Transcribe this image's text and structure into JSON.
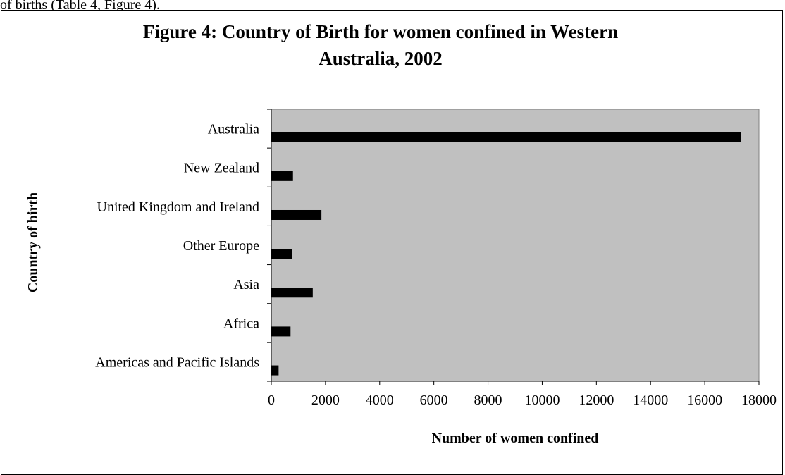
{
  "page": {
    "top_text": "of births (Table 4, Figure 4)."
  },
  "chart_data": {
    "type": "bar",
    "orientation": "horizontal",
    "title_lines": [
      "Figure 4: Country of Birth for women confined in Western",
      "Australia, 2002"
    ],
    "xlabel": "Number of women confined",
    "ylabel": "Country of birth",
    "categories": [
      "Australia",
      "New Zealand",
      "United Kingdom and Ireland",
      "Other Europe",
      "Asia",
      "Africa",
      "Americas and Pacific Islands"
    ],
    "values": [
      17330,
      800,
      1850,
      760,
      1530,
      710,
      270
    ],
    "xlim": [
      0,
      18000
    ],
    "xticks": [
      0,
      2000,
      4000,
      6000,
      8000,
      10000,
      12000,
      14000,
      16000,
      18000
    ],
    "bar_color": "#000000",
    "plot_background": "#c0c0c0",
    "grid": false,
    "legend": "none"
  }
}
